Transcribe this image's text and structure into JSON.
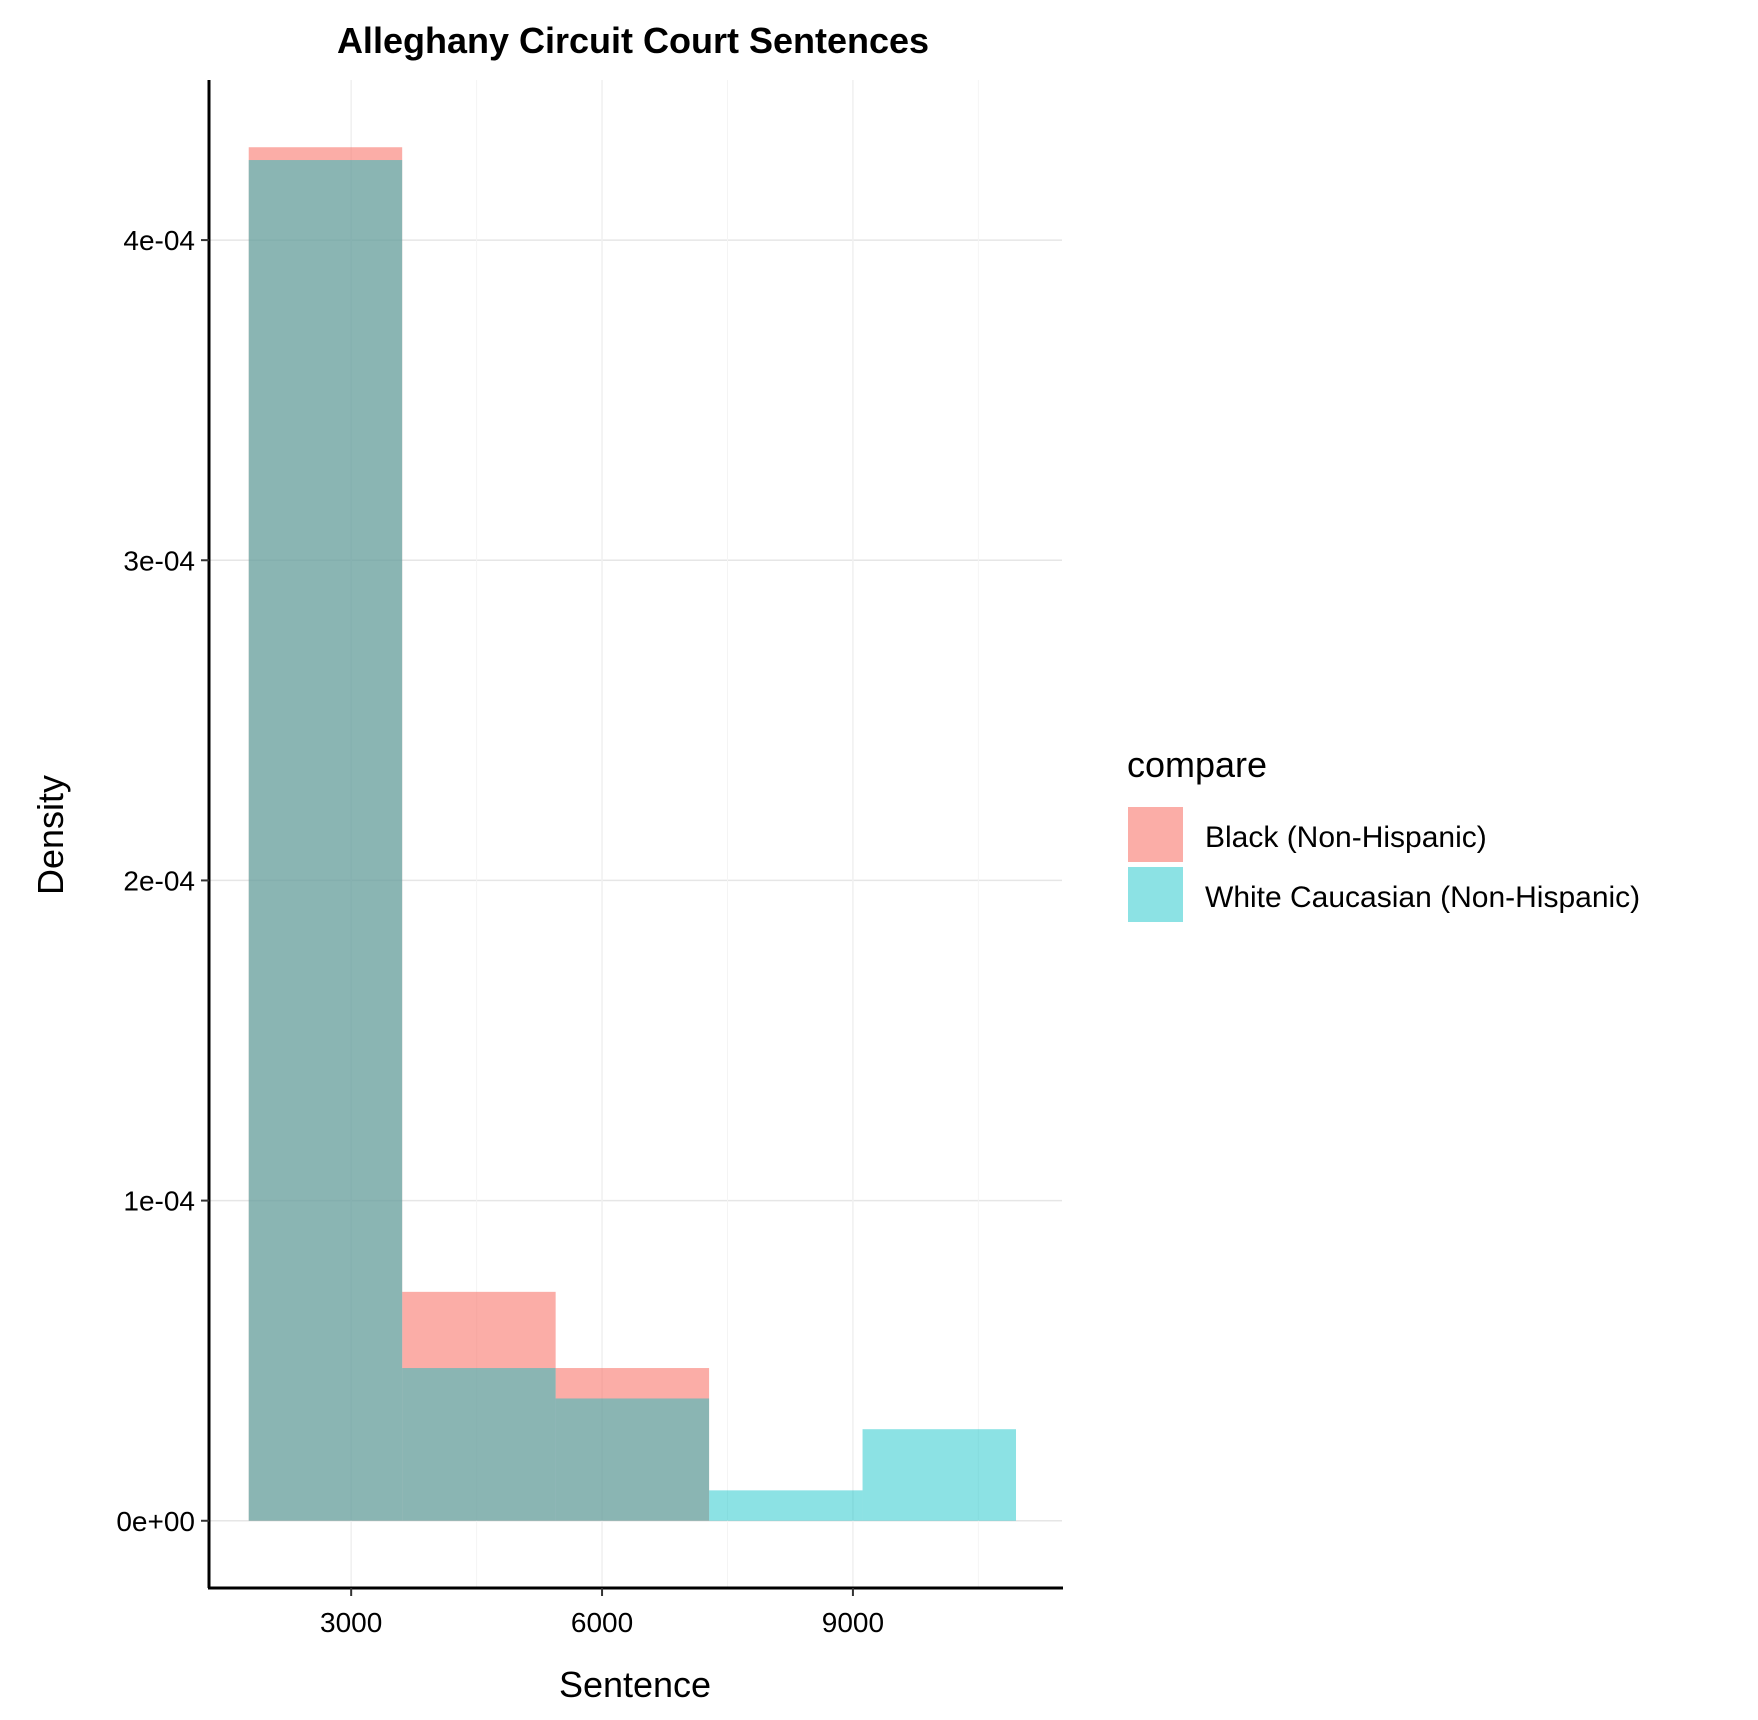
{
  "chart_data": {
    "type": "histogram",
    "title": "Alleghany Circuit Court Sentences",
    "xlabel": "Sentence",
    "ylabel": "Density",
    "xlim": [
      1300,
      11500
    ],
    "ylim": [
      -2.1e-05,
      0.00045
    ],
    "x_ticks": [
      {
        "value": 3000,
        "label": "3000"
      },
      {
        "value": 6000,
        "label": "6000"
      },
      {
        "value": 9000,
        "label": "9000"
      }
    ],
    "x_minor_gridlines": [
      4500,
      7500,
      10500
    ],
    "y_ticks": [
      {
        "value": 0,
        "label": "0e+00"
      },
      {
        "value": 0.0001,
        "label": "1e-04"
      },
      {
        "value": 0.0002,
        "label": "2e-04"
      },
      {
        "value": 0.0003,
        "label": "3e-04"
      },
      {
        "value": 0.0004,
        "label": "4e-04"
      }
    ],
    "bin_edges": [
      1775,
      3610,
      5445,
      7280,
      9115,
      10950
    ],
    "series": [
      {
        "name": "Black (Non-Hispanic)",
        "color": "#F8766D",
        "opacity": 0.6,
        "values": [
          0.000429,
          7.15e-05,
          4.77e-05,
          0,
          0
        ]
      },
      {
        "name": "White Caucasian (Non-Hispanic)",
        "color": "#00BFC4",
        "opacity": 0.45,
        "values": [
          0.000425,
          4.77e-05,
          3.82e-05,
          9.5e-06,
          2.86e-05
        ]
      }
    ],
    "legend": {
      "title": "compare",
      "position": "right",
      "entries": [
        "Black (Non-Hispanic)",
        "White Caucasian (Non-Hispanic)"
      ]
    },
    "grid": true
  }
}
